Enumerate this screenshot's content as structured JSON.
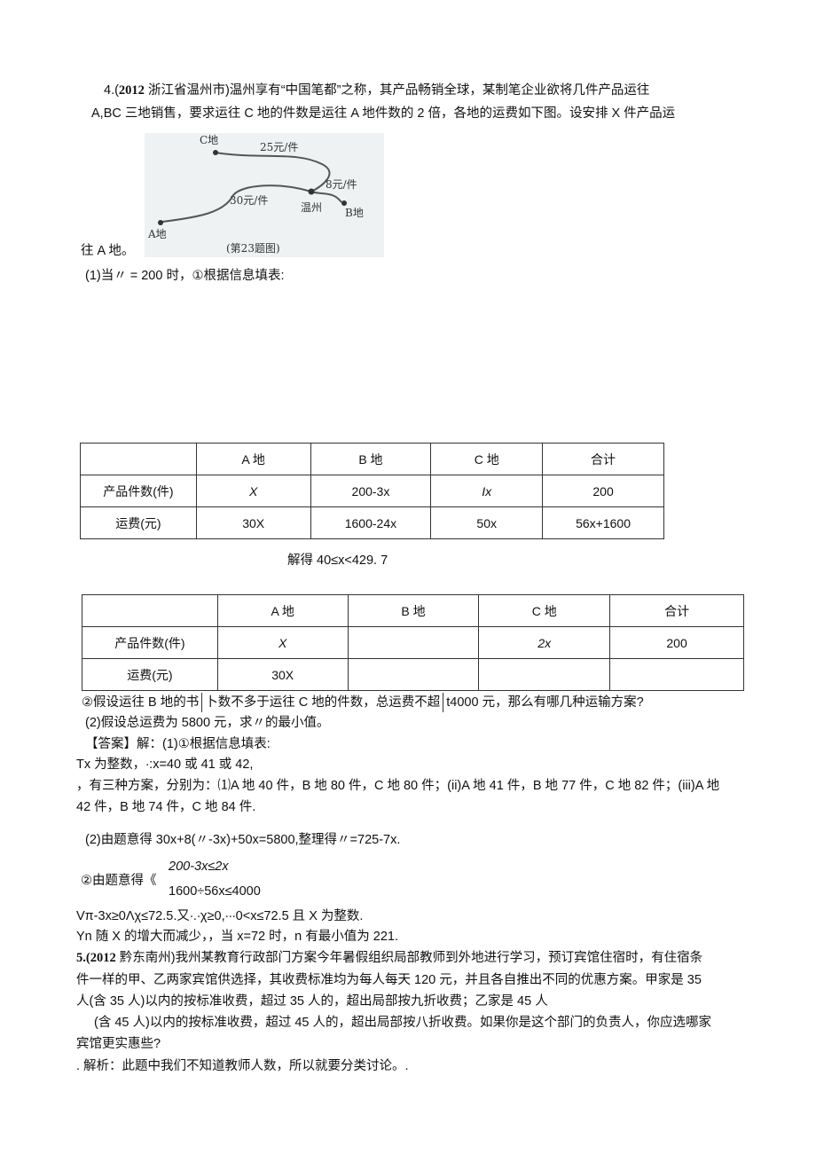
{
  "q4": {
    "line1_num": "4.(",
    "line1_year": "2012",
    "line1": " 浙江省温州市)温州享有“中国笔都”之称，其产品畅销全球，某制笔企业欲将几件产品运往",
    "line2": "A,BC 三地销售，要求运往 C 地的件数是运往 A 地件数的 2 倍，各地的运费如下图。设安排 X 件产品运",
    "line3": "往 A 地。",
    "map": {
      "c": "C地",
      "a": "A地",
      "b": "B地",
      "wz": "温州",
      "cost_c": "25元/件",
      "cost_a": "30元/件",
      "cost_b": "8元/件",
      "caption": "(第23题图)"
    },
    "sub1": "(1)当〃 = 200 时，①根据信息填表:",
    "table1": {
      "header": [
        "",
        "A 地",
        "B 地",
        "C 地",
        "合计"
      ],
      "rows": [
        [
          "产品件数(件)",
          "X",
          "200-3x",
          "Ix",
          "200"
        ],
        [
          "运费(元)",
          "30X",
          "1600-24x",
          "50x",
          "56x+1600"
        ]
      ]
    },
    "solve": "解得  40≤x<429. 7",
    "table2": {
      "header": [
        "",
        "A 地",
        "B 地",
        "C 地",
        "合计"
      ],
      "rows": [
        [
          "产品件数(件)",
          "X",
          "",
          "2x",
          "200"
        ],
        [
          "运费(元)",
          "30X",
          "",
          "",
          ""
        ]
      ]
    },
    "q2a": "②假设运往 B 地的书",
    "q2b": "卜数不多于运往 C 地的件数，总运费不超",
    "q2c": "t4000 元，那么有哪几种运输方案?",
    "q3": "(2)假设总运费为 5800 元，求〃的最小值。",
    "ans1": "【答案】解：(1)①根据信息填表:",
    "ans2": "Tx 为整数，∙:x=40 或 41 或 42,",
    "ans3": "，有三种方案，分别为：⑴A 地 40 件，B 地 80 件，C 地 80 件；(ii)A 地 41 件，B 地 77 件，C 地 82 件；(iii)A 地",
    "ans4": "42 件，B 地 74 件，C 地 84 件.",
    "ans5": "(2)由题意得 30x+8(〃-3x)+50x=5800,整理得〃=725-7x.",
    "ans6": "②由题意得《",
    "ans6a": "200-3x≤2x",
    "ans6b": "1600÷56x≤4000",
    "ans7": "Vπ-3x≥0Λχ≤72.5.又∙.∙χ≥0,∙∙∙0<x≤72.5 且 X 为整数.",
    "ans8": "Yn 随 X 的增大而减少，，当 x=72 时，n 有最小值为 221."
  },
  "q5": {
    "num": "5.(",
    "year": "2012",
    "line1": " 黔东南州)我州某教育行政部门方案今年暑假组织局部教师到外地进行学习，预订宾馆住宿时，有住宿条",
    "line2": "件一样的甲、乙两家宾馆供选择，其收费标准均为每人每天 120 元，并且各自推出不同的优惠方案。甲家是 35",
    "line3": "人(含 35 人)以内的按标准收费，超过 35 人的，超出局部按九折收费；乙家是 45 人",
    "line4": "(含 45 人)以内的按标准收费，超过 45 人的，超出局部按八折收费。如果你是这个部门的负责人，你应选哪家",
    "line5": "宾馆更实惠些?",
    "line6": ". 解析：此题中我们不知道教师人数，所以就要分类讨论。."
  }
}
